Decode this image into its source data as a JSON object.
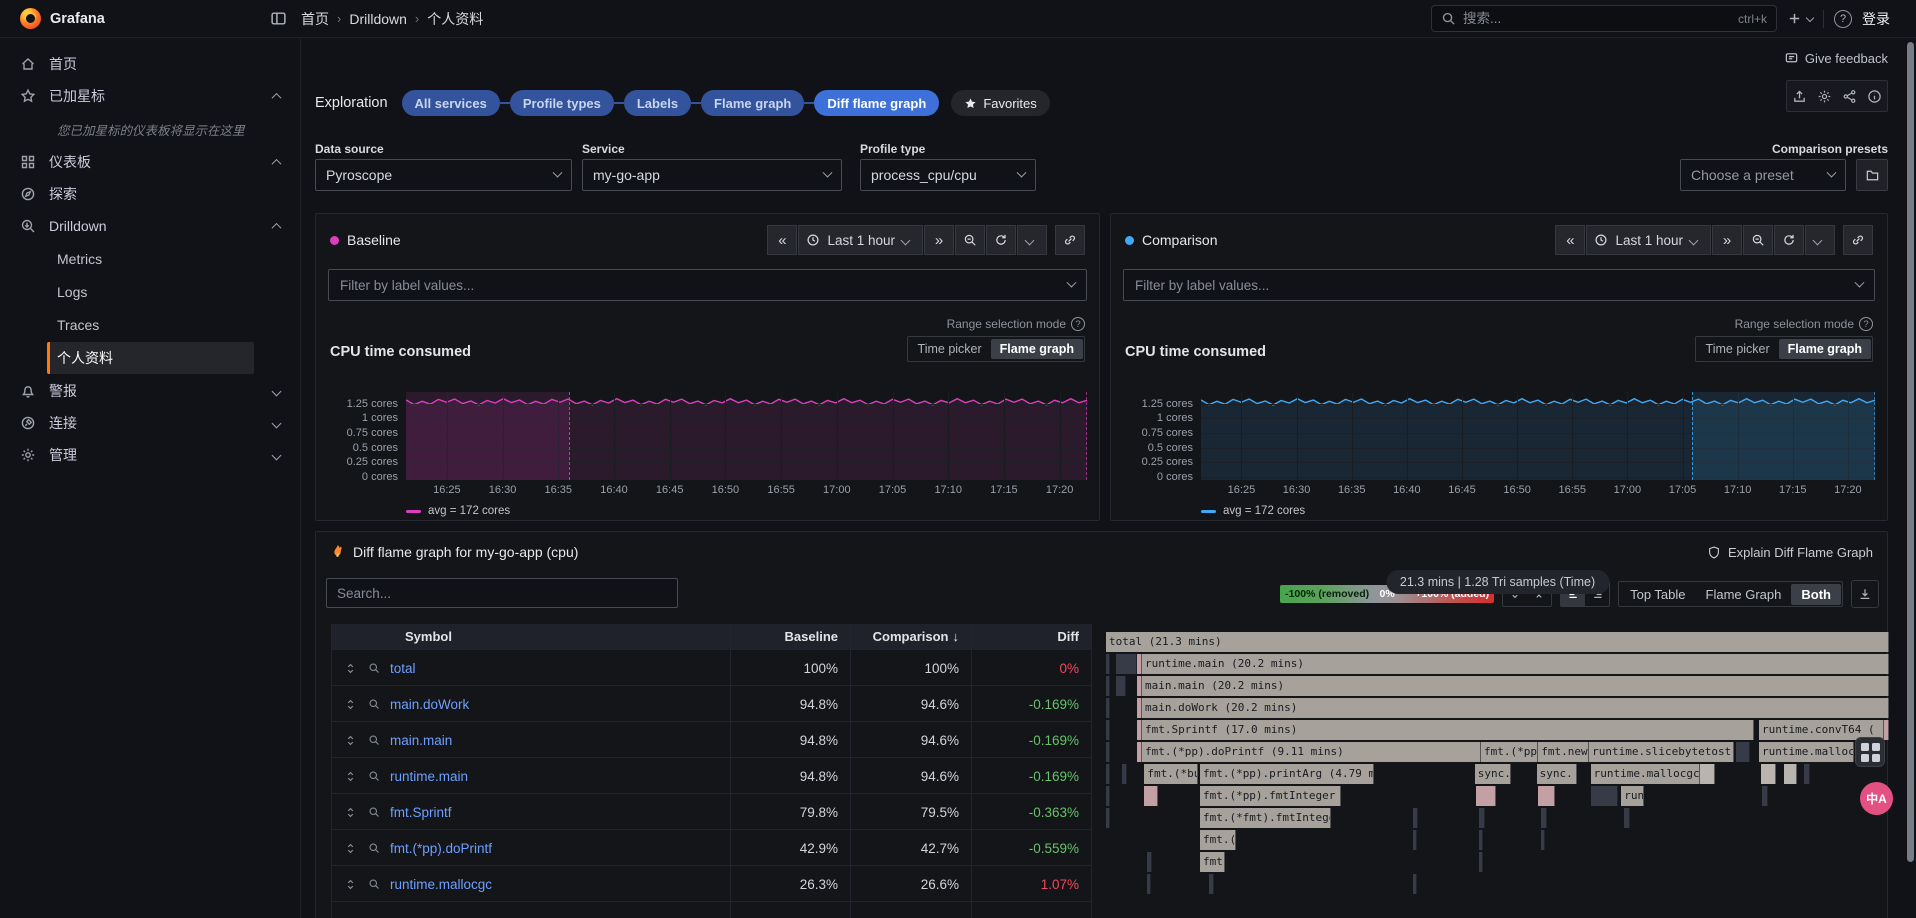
{
  "icons": {
    "prev": "«",
    "next": "»",
    "help": "?",
    "sort_desc": "↓",
    "translate": "中A"
  },
  "colors": {
    "baseline": "#df3dbf",
    "comparison": "#3fa9f5",
    "accent_blue": "#3d71d9",
    "active_orange": "#ff780a",
    "link": "#6e9fff",
    "diff_green": "#67c26b",
    "diff_red": "#f2495c",
    "flame_gray": "#a6a29b",
    "flame_pink": "#c2a0a4",
    "flame_dark": "#363b47",
    "flame_light": "#b9b5ae"
  },
  "topnav": {
    "brand": "Grafana",
    "breadcrumb": [
      "首页",
      "Drilldown",
      "个人资料"
    ],
    "search_placeholder": "搜索...",
    "search_shortcut": "ctrl+k",
    "signin": "登录"
  },
  "sidebar": {
    "items": [
      {
        "type": "item",
        "icon": "home",
        "label": "首页"
      },
      {
        "type": "item",
        "icon": "star",
        "label": "已加星标",
        "chevron": "up"
      },
      {
        "type": "hint",
        "label": "您已加星标的仪表板将显示在这里"
      },
      {
        "type": "item",
        "icon": "grid",
        "label": "仪表板",
        "chevron": "up"
      },
      {
        "type": "item",
        "icon": "compass",
        "label": "探索"
      },
      {
        "type": "item",
        "icon": "drill",
        "label": "Drilldown",
        "chevron": "up"
      },
      {
        "type": "child",
        "label": "Metrics"
      },
      {
        "type": "child",
        "label": "Logs"
      },
      {
        "type": "child",
        "label": "Traces"
      },
      {
        "type": "child",
        "label": "个人资料",
        "active": true
      },
      {
        "type": "item",
        "icon": "bell",
        "label": "警报",
        "chevron": "down"
      },
      {
        "type": "item",
        "icon": "plug",
        "label": "连接",
        "chevron": "down"
      },
      {
        "type": "item",
        "icon": "gear",
        "label": "管理",
        "chevron": "down"
      }
    ]
  },
  "actions": {
    "give_feedback": "Give feedback"
  },
  "exploration": {
    "label": "Exploration",
    "tabs": [
      {
        "label": "All services",
        "active": false
      },
      {
        "label": "Profile types",
        "active": false
      },
      {
        "label": "Labels",
        "active": false
      },
      {
        "label": "Flame graph",
        "active": false
      },
      {
        "label": "Diff flame graph",
        "active": true
      }
    ],
    "favorites": "Favorites"
  },
  "controls": {
    "datasource_label": "Data source",
    "datasource_value": "Pyroscope",
    "service_label": "Service",
    "service_value": "my-go-app",
    "profile_label": "Profile type",
    "profile_value": "process_cpu/cpu",
    "presets_label": "Comparison presets",
    "presets_value": "Choose a preset"
  },
  "baseline": {
    "title": "Baseline",
    "time_range": "Last 1 hour",
    "filter_placeholder": "Filter by label values...",
    "chart_title": "CPU time consumed",
    "range_mode_label": "Range selection mode",
    "mode_options": [
      "Time picker",
      "Flame graph"
    ],
    "mode_active": "Flame graph",
    "legend": "avg = 172 cores",
    "y_ticks": [
      "1.25 cores",
      "1 cores",
      "0.75 cores",
      "0.5 cores",
      "0.25 cores",
      "0 cores"
    ],
    "x_ticks": [
      "16:25",
      "16:30",
      "16:35",
      "16:40",
      "16:45",
      "16:50",
      "16:55",
      "17:00",
      "17:05",
      "17:10",
      "17:15",
      "17:20"
    ],
    "selection": {
      "left_pct": 0,
      "width_pct": 24
    }
  },
  "comparison": {
    "title": "Comparison",
    "time_range": "Last 1 hour",
    "filter_placeholder": "Filter by label values...",
    "chart_title": "CPU time consumed",
    "range_mode_label": "Range selection mode",
    "mode_options": [
      "Time picker",
      "Flame graph"
    ],
    "mode_active": "Flame graph",
    "legend": "avg = 172 cores",
    "y_ticks": [
      "1.25 cores",
      "1 cores",
      "0.75 cores",
      "0.5 cores",
      "0.25 cores",
      "0 cores"
    ],
    "x_ticks": [
      "16:25",
      "16:30",
      "16:35",
      "16:40",
      "16:45",
      "16:50",
      "16:55",
      "17:00",
      "17:05",
      "17:10",
      "17:15",
      "17:20"
    ],
    "selection": {
      "left_pct": 72.8,
      "width_pct": 27.2
    }
  },
  "diff": {
    "title": "Diff flame graph for my-go-app (cpu)",
    "explain": "Explain Diff Flame Graph",
    "search_placeholder": "Search...",
    "scale": {
      "removed": "-100% (removed)",
      "zero": "0%",
      "added": "+100% (added)"
    },
    "view_options": [
      "Top Table",
      "Flame Graph",
      "Both"
    ],
    "view_active": "Both",
    "summary": "21.3 mins | 1.28 Tri samples (Time)",
    "table": {
      "headers": [
        "Symbol",
        "Baseline",
        "Comparison",
        "Diff"
      ],
      "sorted_by": "Comparison",
      "rows": [
        {
          "symbol": "total",
          "baseline": "100%",
          "comparison": "100%",
          "diff": "0%"
        },
        {
          "symbol": "main.doWork",
          "baseline": "94.8%",
          "comparison": "94.6%",
          "diff": "-0.169%"
        },
        {
          "symbol": "main.main",
          "baseline": "94.8%",
          "comparison": "94.6%",
          "diff": "-0.169%"
        },
        {
          "symbol": "runtime.main",
          "baseline": "94.8%",
          "comparison": "94.6%",
          "diff": "-0.169%"
        },
        {
          "symbol": "fmt.Sprintf",
          "baseline": "79.8%",
          "comparison": "79.5%",
          "diff": "-0.363%"
        },
        {
          "symbol": "fmt.(*pp).doPrintf",
          "baseline": "42.9%",
          "comparison": "42.7%",
          "diff": "-0.559%"
        },
        {
          "symbol": "runtime.mallocgc",
          "baseline": "26.3%",
          "comparison": "26.6%",
          "diff": "1.07%"
        }
      ]
    },
    "flame": {
      "rows": [
        [
          [
            0,
            100,
            "g",
            "total (21.3 mins)"
          ]
        ],
        [
          [
            0,
            0.5,
            "d"
          ],
          [
            1.3,
            2.6,
            "d"
          ],
          [
            4.0,
            0.6,
            "p"
          ],
          [
            4.6,
            95.4,
            "g",
            "runtime.main (20.2 mins)"
          ]
        ],
        [
          [
            0,
            0.5,
            "d"
          ],
          [
            1.3,
            1.2,
            "d"
          ],
          [
            4.0,
            0.6,
            "p"
          ],
          [
            4.6,
            95.4,
            "g",
            "main.main (20.2 mins)"
          ]
        ],
        [
          [
            0,
            0.5,
            "d"
          ],
          [
            4.0,
            0.6,
            "p"
          ],
          [
            4.6,
            95.4,
            "g",
            "main.doWork (20.2 mins)"
          ]
        ],
        [
          [
            0,
            0.5,
            "d"
          ],
          [
            4.0,
            0.6,
            "p"
          ],
          [
            4.6,
            78.2,
            "g",
            "fmt.Sprintf (17.0 mins)"
          ],
          [
            83.4,
            15.9,
            "g",
            "runtime.convT64 ("
          ],
          [
            99.4,
            0.6,
            "p"
          ]
        ],
        [
          [
            0,
            0.5,
            "d"
          ],
          [
            4.0,
            0.6,
            "p"
          ],
          [
            4.6,
            43.3,
            "g",
            "fmt.(*pp).doPrintf (9.11 mins)"
          ],
          [
            47.9,
            7.3,
            "g",
            "fmt.(*pp)."
          ],
          [
            55.2,
            6.5,
            "g",
            "fmt.newP"
          ],
          [
            61.7,
            18.5,
            "g",
            "runtime.slicebytetostri"
          ],
          [
            80.4,
            1.8,
            "d"
          ],
          [
            83.4,
            12.1,
            "g",
            "runtime.mallocg"
          ],
          [
            95.7,
            1.4,
            "l"
          ],
          [
            97.4,
            0.9,
            "p"
          ]
        ],
        [
          [
            0,
            0.5,
            "d"
          ],
          [
            2.0,
            0.7,
            "d"
          ],
          [
            4.9,
            6.9,
            "g",
            "fmt.(*buf"
          ],
          [
            12.0,
            22.2,
            "g",
            "fmt.(*pp).printArg (4.79 mi"
          ],
          [
            47.1,
            4.6,
            "g",
            "sync.("
          ],
          [
            55.0,
            5.2,
            "g",
            "sync."
          ],
          [
            61.9,
            13.9,
            "g",
            "runtime.mallocgc"
          ],
          [
            75.9,
            1.9,
            "l"
          ],
          [
            83.6,
            2.0,
            "l"
          ],
          [
            86.6,
            1.6,
            "l"
          ],
          [
            89.2,
            0.7,
            "d"
          ]
        ],
        [
          [
            0,
            0.5,
            "d"
          ],
          [
            4.9,
            1.7,
            "p"
          ],
          [
            12.0,
            18.0,
            "g",
            "fmt.(*pp).fmtInteger ("
          ],
          [
            47.3,
            2.5,
            "p"
          ],
          [
            55.2,
            2.2,
            "p"
          ],
          [
            61.9,
            3.5,
            "d"
          ],
          [
            65.8,
            2.9,
            "g",
            "run"
          ],
          [
            83.8,
            0.7,
            "d"
          ]
        ],
        [
          [
            0,
            0.5,
            "d"
          ],
          [
            12.0,
            16.7,
            "g",
            "fmt.(*fmt).fmtInteger"
          ],
          [
            39.2,
            0.6,
            "d"
          ],
          [
            47.6,
            0.8,
            "d"
          ],
          [
            55.5,
            0.8,
            "d"
          ],
          [
            66.2,
            0.7,
            "d"
          ]
        ],
        [
          [
            12.0,
            4.6,
            "g",
            "fmt.("
          ],
          [
            39.2,
            0.5,
            "d"
          ],
          [
            47.6,
            0.6,
            "d"
          ],
          [
            55.5,
            0.6,
            "d"
          ]
        ],
        [
          [
            5.3,
            0.6,
            "d"
          ],
          [
            12.0,
            3.2,
            "g",
            "fmt."
          ],
          [
            47.6,
            0.5,
            "d"
          ]
        ],
        [
          [
            5.3,
            0.5,
            "d"
          ],
          [
            13.2,
            0.6,
            "d"
          ],
          [
            39.2,
            0.5,
            "d"
          ]
        ]
      ]
    }
  }
}
